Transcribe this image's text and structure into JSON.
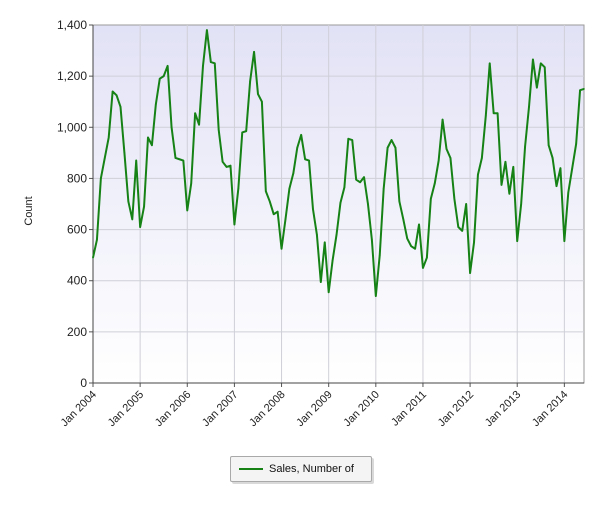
{
  "chart_data": {
    "type": "line",
    "ylabel": "Count",
    "ylim": [
      0,
      1400
    ],
    "yticks": [
      "0",
      "200",
      "400",
      "600",
      "800",
      "1,000",
      "1,200",
      "1,400"
    ],
    "xticks": [
      "Jan 2004",
      "Jan 2005",
      "Jan 2006",
      "Jan 2007",
      "Jan 2008",
      "Jan 2009",
      "Jan 2010",
      "Jan 2011",
      "Jan 2012",
      "Jan 2013",
      "Jan 2014"
    ],
    "grid": true,
    "legend_position": "bottom",
    "series": [
      {
        "name": "Sales, Number of",
        "color": "#168216",
        "x": [
          "2004-01",
          "2004-02",
          "2004-03",
          "2004-04",
          "2004-05",
          "2004-06",
          "2004-07",
          "2004-08",
          "2004-09",
          "2004-10",
          "2004-11",
          "2004-12",
          "2005-01",
          "2005-02",
          "2005-03",
          "2005-04",
          "2005-05",
          "2005-06",
          "2005-07",
          "2005-08",
          "2005-09",
          "2005-10",
          "2005-11",
          "2005-12",
          "2006-01",
          "2006-02",
          "2006-03",
          "2006-04",
          "2006-05",
          "2006-06",
          "2006-07",
          "2006-08",
          "2006-09",
          "2006-10",
          "2006-11",
          "2006-12",
          "2007-01",
          "2007-02",
          "2007-03",
          "2007-04",
          "2007-05",
          "2007-06",
          "2007-07",
          "2007-08",
          "2007-09",
          "2007-10",
          "2007-11",
          "2007-12",
          "2008-01",
          "2008-02",
          "2008-03",
          "2008-04",
          "2008-05",
          "2008-06",
          "2008-07",
          "2008-08",
          "2008-09",
          "2008-10",
          "2008-11",
          "2008-12",
          "2009-01",
          "2009-02",
          "2009-03",
          "2009-04",
          "2009-05",
          "2009-06",
          "2009-07",
          "2009-08",
          "2009-09",
          "2009-10",
          "2009-11",
          "2009-12",
          "2010-01",
          "2010-02",
          "2010-03",
          "2010-04",
          "2010-05",
          "2010-06",
          "2010-07",
          "2010-08",
          "2010-09",
          "2010-10",
          "2010-11",
          "2010-12",
          "2011-01",
          "2011-02",
          "2011-03",
          "2011-04",
          "2011-05",
          "2011-06",
          "2011-07",
          "2011-08",
          "2011-09",
          "2011-10",
          "2011-11",
          "2011-12",
          "2012-01",
          "2012-02",
          "2012-03",
          "2012-04",
          "2012-05",
          "2012-06",
          "2012-07",
          "2012-08",
          "2012-09",
          "2012-10",
          "2012-11",
          "2012-12",
          "2013-01",
          "2013-02",
          "2013-03",
          "2013-04",
          "2013-05",
          "2013-06",
          "2013-07",
          "2013-08",
          "2013-09",
          "2013-10",
          "2013-11",
          "2013-12",
          "2014-01",
          "2014-02",
          "2014-03",
          "2014-04",
          "2014-05",
          "2014-06"
        ],
        "values": [
          490,
          560,
          800,
          880,
          960,
          1140,
          1125,
          1080,
          900,
          710,
          640,
          870,
          610,
          690,
          960,
          930,
          1090,
          1190,
          1200,
          1240,
          1000,
          880,
          875,
          870,
          675,
          780,
          1055,
          1010,
          1240,
          1380,
          1255,
          1250,
          990,
          865,
          845,
          850,
          620,
          760,
          980,
          985,
          1180,
          1295,
          1130,
          1100,
          750,
          710,
          660,
          670,
          525,
          640,
          760,
          820,
          920,
          970,
          875,
          870,
          680,
          580,
          395,
          550,
          355,
          480,
          580,
          705,
          765,
          955,
          950,
          795,
          785,
          805,
          700,
          560,
          340,
          500,
          760,
          920,
          950,
          920,
          710,
          640,
          565,
          535,
          525,
          620,
          450,
          490,
          720,
          780,
          870,
          1030,
          915,
          880,
          720,
          610,
          595,
          700,
          430,
          550,
          815,
          880,
          1045,
          1250,
          1055,
          1055,
          775,
          865,
          740,
          845,
          555,
          700,
          925,
          1080,
          1265,
          1155,
          1250,
          1235,
          930,
          880,
          770,
          840,
          555,
          745,
          840,
          935,
          1145,
          1150
        ]
      }
    ]
  }
}
